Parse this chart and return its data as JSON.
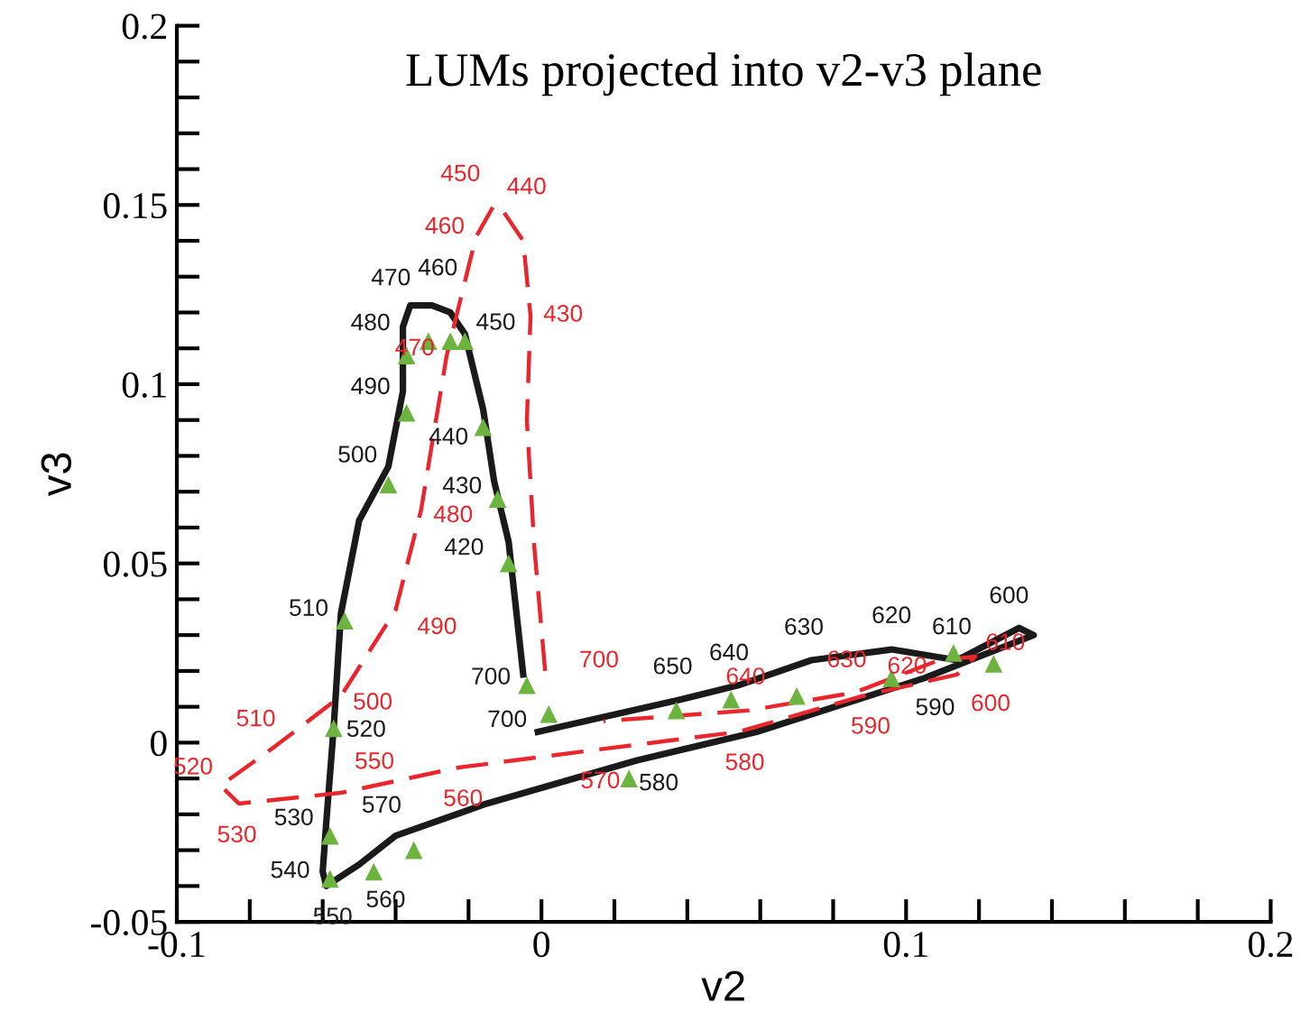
{
  "chart_data": {
    "type": "line",
    "title": "LUMs projected into v2-v3 plane",
    "xlabel": "v2",
    "ylabel": "v3",
    "xlim": [
      -0.1,
      0.2
    ],
    "ylim": [
      -0.05,
      0.2
    ],
    "xticks": [
      -0.1,
      {
        "value": -0.08,
        "label": null
      },
      {
        "value": -0.06,
        "label": null
      },
      {
        "value": -0.04,
        "label": null
      },
      {
        "value": -0.02,
        "label": null
      },
      0,
      {
        "value": 0.02,
        "label": null
      },
      {
        "value": 0.04,
        "label": null
      },
      {
        "value": 0.06,
        "label": null
      },
      {
        "value": 0.08,
        "label": null
      },
      0.1,
      {
        "value": 0.12,
        "label": null
      },
      {
        "value": 0.14,
        "label": null
      },
      {
        "value": 0.16,
        "label": null
      },
      {
        "value": 0.18,
        "label": null
      },
      0.2
    ],
    "yticks": [
      -0.05,
      {
        "value": -0.04,
        "label": null
      },
      {
        "value": -0.03,
        "label": null
      },
      {
        "value": -0.02,
        "label": null
      },
      {
        "value": -0.01,
        "label": null
      },
      0,
      {
        "value": 0.01,
        "label": null
      },
      {
        "value": 0.02,
        "label": null
      },
      {
        "value": 0.03,
        "label": null
      },
      {
        "value": 0.04,
        "label": null
      },
      0.05,
      {
        "value": 0.06,
        "label": null
      },
      {
        "value": 0.07,
        "label": null
      },
      {
        "value": 0.08,
        "label": null
      },
      {
        "value": 0.09,
        "label": null
      },
      0.1,
      {
        "value": 0.11,
        "label": null
      },
      {
        "value": 0.12,
        "label": null
      },
      {
        "value": 0.13,
        "label": null
      },
      {
        "value": 0.14,
        "label": null
      },
      0.15,
      {
        "value": 0.16,
        "label": null
      },
      {
        "value": 0.17,
        "label": null
      },
      {
        "value": 0.18,
        "label": null
      },
      {
        "value": 0.19,
        "label": null
      },
      0.2
    ],
    "grid": false,
    "legend": false,
    "series": [
      {
        "color": "#1a1a1a",
        "line_style": "solid",
        "marker": "none",
        "x": [
          -0.005,
          -0.009,
          -0.013,
          -0.016,
          -0.021,
          -0.025,
          -0.03,
          -0.036,
          -0.038,
          -0.038,
          -0.042,
          -0.05,
          -0.055,
          -0.057,
          -0.059,
          -0.06,
          -0.059,
          -0.05,
          -0.04,
          -0.015,
          0.026,
          0.059,
          0.105,
          0.135,
          0.131,
          0.114,
          0.096,
          0.074,
          0.054,
          0.038,
          -0.001
        ],
        "values": [
          0.019,
          0.056,
          0.073,
          0.093,
          0.114,
          0.12,
          0.122,
          0.122,
          0.116,
          0.098,
          0.077,
          0.062,
          0.036,
          0.004,
          -0.022,
          -0.036,
          -0.04,
          -0.034,
          -0.026,
          -0.017,
          -0.005,
          0.003,
          0.018,
          0.03,
          0.032,
          0.023,
          0.026,
          0.023,
          0.016,
          0.012,
          0.003
        ]
      },
      {
        "color": "#e8262c",
        "line_style": "dashed",
        "marker": "none",
        "x": [
          0.001,
          -0.002,
          -0.004,
          -0.003,
          -0.005,
          -0.011,
          -0.013,
          -0.018,
          -0.026,
          -0.033,
          -0.04,
          -0.055,
          -0.073,
          -0.088,
          -0.083,
          -0.055,
          -0.023,
          0.015,
          0.054,
          0.088,
          0.114,
          0.119,
          0.109,
          0.086,
          0.057,
          0.017
        ],
        "values": [
          0.02,
          0.055,
          0.09,
          0.119,
          0.14,
          0.149,
          0.15,
          0.141,
          0.108,
          0.065,
          0.037,
          0.013,
          -0.001,
          -0.012,
          -0.017,
          -0.014,
          -0.007,
          -0.002,
          0.003,
          0.013,
          0.019,
          0.024,
          0.023,
          0.014,
          0.009,
          0.006
        ]
      },
      {
        "type": "scatter",
        "color": "#6cb33f",
        "marker": "triangle",
        "x": [
          -0.021,
          -0.025,
          -0.031,
          -0.037,
          -0.037,
          -0.042,
          -0.054,
          -0.057,
          -0.058,
          -0.058,
          -0.046,
          -0.035,
          0.024,
          0.002,
          -0.004,
          0.037,
          0.052,
          0.07,
          0.096,
          0.113,
          0.124,
          -0.009,
          -0.012,
          -0.016
        ],
        "values": [
          0.112,
          0.112,
          0.112,
          0.108,
          0.092,
          0.072,
          0.034,
          0.004,
          -0.026,
          -0.038,
          -0.036,
          -0.03,
          -0.01,
          0.008,
          0.016,
          0.009,
          0.012,
          0.013,
          0.018,
          0.025,
          0.022,
          0.05,
          0.068,
          0.088
        ]
      }
    ],
    "annotations": [
      {
        "text": "700",
        "x": -0.005,
        "y": 0.019
      },
      {
        "text": "420",
        "x": -0.009,
        "y": 0.056
      },
      {
        "text": "430",
        "x": -0.013,
        "y": 0.073
      },
      {
        "text": "440",
        "x": -0.016,
        "y": 0.093
      },
      {
        "text": "450",
        "x": -0.021,
        "y": 0.114
      },
      {
        "text": "460",
        "x": -0.025,
        "y": 0.12
      },
      {
        "text": "470",
        "x": -0.036,
        "y": 0.122
      },
      {
        "text": "480",
        "x": -0.038,
        "y": 0.116
      },
      {
        "text": "490",
        "x": -0.038,
        "y": 0.098
      },
      {
        "text": "500",
        "x": -0.042,
        "y": 0.077
      },
      {
        "text": "510",
        "x": -0.055,
        "y": 0.036
      },
      {
        "text": "520",
        "x": -0.057,
        "y": 0.004
      },
      {
        "text": "530",
        "x": -0.059,
        "y": -0.022
      },
      {
        "text": "540",
        "x": -0.06,
        "y": -0.036
      },
      {
        "text": "550",
        "x": -0.059,
        "y": -0.04
      },
      {
        "text": "560",
        "x": -0.05,
        "y": -0.034
      },
      {
        "text": "570",
        "x": -0.04,
        "y": -0.026
      },
      {
        "text": "580",
        "x": 0.026,
        "y": -0.005
      },
      {
        "text": "590",
        "x": 0.105,
        "y": 0.018
      },
      {
        "text": "600",
        "x": 0.131,
        "y": 0.032
      },
      {
        "text": "610",
        "x": 0.114,
        "y": 0.023
      },
      {
        "text": "620",
        "x": 0.096,
        "y": 0.026
      },
      {
        "text": "630",
        "x": 0.074,
        "y": 0.023
      },
      {
        "text": "640",
        "x": 0.054,
        "y": 0.016
      },
      {
        "text": "650",
        "x": 0.038,
        "y": 0.012
      },
      {
        "text": "700",
        "x": -0.001,
        "y": 0.003
      },
      {
        "text": "430",
        "x": -0.003,
        "y": 0.119
      },
      {
        "text": "440",
        "x": -0.011,
        "y": 0.149
      },
      {
        "text": "450",
        "x": -0.013,
        "y": 0.15
      },
      {
        "text": "460",
        "x": -0.018,
        "y": 0.141
      },
      {
        "text": "470",
        "x": -0.026,
        "y": 0.108
      },
      {
        "text": "480",
        "x": -0.033,
        "y": 0.065
      },
      {
        "text": "490",
        "x": -0.04,
        "y": 0.037
      },
      {
        "text": "500",
        "x": -0.055,
        "y": 0.013
      },
      {
        "text": "510",
        "x": -0.073,
        "y": -0.001
      },
      {
        "text": "520",
        "x": -0.088,
        "y": -0.012
      },
      {
        "text": "530",
        "x": -0.083,
        "y": -0.017
      },
      {
        "text": "550",
        "x": -0.055,
        "y": -0.014
      },
      {
        "text": "560",
        "x": -0.023,
        "y": -0.007
      },
      {
        "text": "570",
        "x": 0.015,
        "y": -0.002
      },
      {
        "text": "580",
        "x": 0.054,
        "y": 0.003
      },
      {
        "text": "590",
        "x": 0.088,
        "y": 0.013
      },
      {
        "text": "600",
        "x": 0.114,
        "y": 0.019
      },
      {
        "text": "610",
        "x": 0.119,
        "y": 0.024
      },
      {
        "text": "620",
        "x": 0.109,
        "y": 0.023
      },
      {
        "text": "630",
        "x": 0.086,
        "y": 0.014
      },
      {
        "text": "640",
        "x": 0.057,
        "y": 0.009
      },
      {
        "text": "700",
        "x": 0.017,
        "y": 0.006
      }
    ]
  }
}
